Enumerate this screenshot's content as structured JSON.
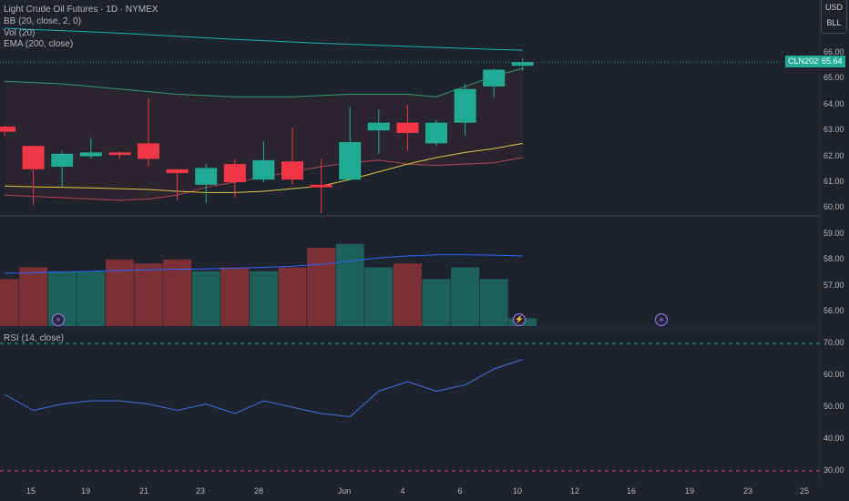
{
  "legend": {
    "symbol": "Light Crude Oil Futures · 1D · NYMEX",
    "bb": "BB (20, close, 2, 0)",
    "vol": "Vol (20)",
    "ema": "EMA (200, close)",
    "rsi": "RSI (14, close)"
  },
  "units": {
    "currency": "USD",
    "unit": "BLL"
  },
  "price_axis": [
    "66.00",
    "65.00",
    "64.00",
    "63.00",
    "62.00",
    "61.00",
    "60.00",
    "59.00",
    "58.00",
    "57.00",
    "56.00"
  ],
  "rsi_axis": [
    "70.00",
    "60.00",
    "50.00",
    "40.00",
    "30.00"
  ],
  "date_axis": [
    "15",
    "19",
    "21",
    "23",
    "28",
    "Jun",
    "4",
    "6",
    "10",
    "12",
    "16",
    "19",
    "23",
    "25"
  ],
  "last_price": {
    "ticker": "CLN2025",
    "value": "65.64"
  },
  "colors": {
    "up": "#22ab94",
    "down": "#f23645",
    "bb_band": "#2e9c6b",
    "ema": "#e6c443",
    "ema200": "#16b1b8",
    "vol_ma": "#2962ff",
    "rsi": "#3f6fe0",
    "rsi_bound": "#22ab94",
    "rsi_low": "#f23645",
    "event_icon": "#9b7bf7"
  },
  "event_icons": [
    "event-lightning-icon",
    "event-calendar-icon",
    "event-calendar-icon"
  ],
  "chart_data": {
    "type": "candlestick",
    "price_ylim": [
      55.6,
      66.6
    ],
    "rsi_ylim": [
      28,
      72
    ],
    "candles": [
      {
        "open": 63.15,
        "high": 63.2,
        "low": 62.8,
        "close": 62.95,
        "volume": 12
      },
      {
        "open": 62.4,
        "high": 62.4,
        "low": 60.1,
        "close": 61.5,
        "volume": 15
      },
      {
        "open": 61.6,
        "high": 62.2,
        "low": 60.8,
        "close": 62.1,
        "volume": 14
      },
      {
        "open": 62.0,
        "high": 62.7,
        "low": 61.9,
        "close": 62.15,
        "volume": 14
      },
      {
        "open": 62.15,
        "high": 62.2,
        "low": 61.9,
        "close": 62.05,
        "volume": 17
      },
      {
        "open": 62.5,
        "high": 64.25,
        "low": 61.6,
        "close": 61.9,
        "volume": 16
      },
      {
        "open": 61.5,
        "high": 61.5,
        "low": 60.3,
        "close": 61.35,
        "volume": 17
      },
      {
        "open": 60.9,
        "high": 61.7,
        "low": 60.2,
        "close": 61.55,
        "volume": 14
      },
      {
        "open": 61.7,
        "high": 61.9,
        "low": 60.4,
        "close": 61.0,
        "volume": 15
      },
      {
        "open": 61.1,
        "high": 62.6,
        "low": 61.0,
        "close": 61.85,
        "volume": 14
      },
      {
        "open": 61.8,
        "high": 63.1,
        "low": 60.9,
        "close": 61.1,
        "volume": 15
      },
      {
        "open": 60.9,
        "high": 61.9,
        "low": 59.8,
        "close": 60.8,
        "volume": 20
      },
      {
        "open": 61.1,
        "high": 63.9,
        "low": 61.1,
        "close": 62.55,
        "volume": 21
      },
      {
        "open": 63.0,
        "high": 63.8,
        "low": 62.1,
        "close": 63.3,
        "volume": 15
      },
      {
        "open": 63.3,
        "high": 64.0,
        "low": 62.2,
        "close": 62.9,
        "volume": 16
      },
      {
        "open": 62.5,
        "high": 63.4,
        "low": 62.4,
        "close": 63.3,
        "volume": 12
      },
      {
        "open": 63.3,
        "high": 64.8,
        "low": 62.8,
        "close": 64.6,
        "volume": 15
      },
      {
        "open": 64.7,
        "high": 65.4,
        "low": 64.3,
        "close": 65.35,
        "volume": 12
      },
      {
        "open": 65.5,
        "high": 65.8,
        "low": 65.3,
        "close": 65.64,
        "volume": 2
      }
    ],
    "bb_upper": [
      64.9,
      64.85,
      64.8,
      64.7,
      64.6,
      64.5,
      64.4,
      64.35,
      64.3,
      64.3,
      64.3,
      64.35,
      64.4,
      64.4,
      64.4,
      64.3,
      64.7,
      65.1,
      65.4
    ],
    "bb_lower": [
      60.5,
      60.45,
      60.4,
      60.35,
      60.3,
      60.35,
      60.5,
      60.8,
      61.0,
      61.2,
      61.4,
      61.6,
      61.75,
      61.85,
      61.7,
      61.65,
      61.7,
      61.75,
      61.95
    ],
    "ema": [
      60.85,
      60.82,
      60.8,
      60.78,
      60.75,
      60.72,
      60.65,
      60.6,
      60.6,
      60.65,
      60.75,
      60.85,
      61.1,
      61.4,
      61.7,
      61.95,
      62.15,
      62.3,
      62.5
    ],
    "ema200": [
      66.95,
      66.9,
      66.86,
      66.81,
      66.76,
      66.7,
      66.64,
      66.58,
      66.52,
      66.47,
      66.42,
      66.37,
      66.33,
      66.29,
      66.25,
      66.21,
      66.17,
      66.13,
      66.1
    ],
    "vol_ma": [
      13.5,
      13.6,
      13.8,
      14.0,
      14.2,
      14.4,
      14.5,
      14.6,
      14.8,
      15.0,
      15.3,
      15.8,
      16.6,
      17.4,
      17.9,
      18.2,
      18.2,
      18.1,
      17.9
    ],
    "rsi": [
      54,
      49,
      51,
      52,
      52,
      51,
      49,
      51,
      48,
      52,
      50,
      48,
      47,
      55,
      58,
      55,
      57,
      62,
      65
    ]
  }
}
